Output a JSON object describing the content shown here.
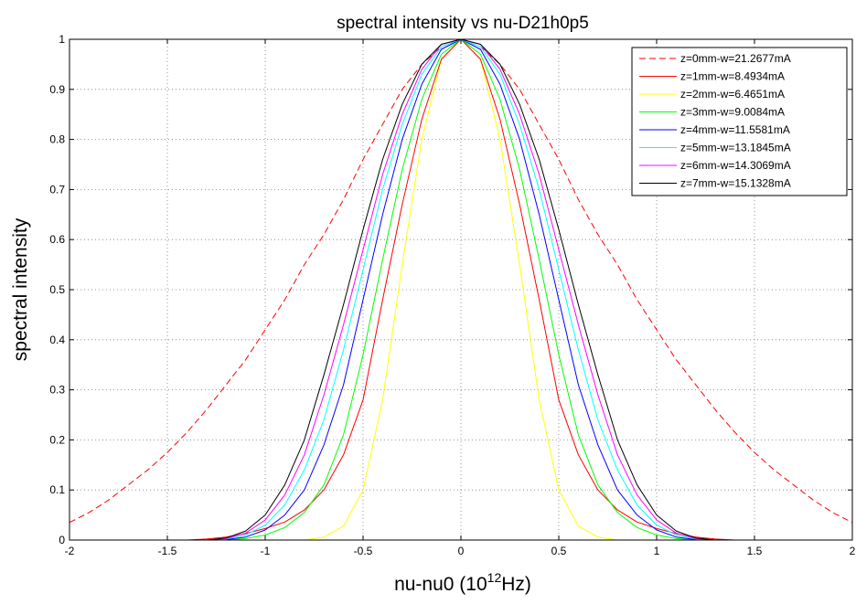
{
  "chart_data": {
    "type": "line",
    "title": "spectral intensity vs nu-D21h0p5",
    "xlabel": "nu-nu0 (10^12Hz)",
    "xlabel_parts": {
      "base": "nu-nu0 (10",
      "sup": "12",
      "tail": "Hz)"
    },
    "ylabel": "spectral intensity",
    "xlim": [
      -2,
      2
    ],
    "ylim": [
      0,
      1
    ],
    "xticks": [
      -2,
      -1.5,
      -1,
      -0.5,
      0,
      0.5,
      1,
      1.5,
      2
    ],
    "xtick_labels": [
      "-2",
      "-1.5",
      "-1",
      "-0.5",
      "0",
      "0.5",
      "1",
      "1.5",
      "2"
    ],
    "yticks": [
      0,
      0.1,
      0.2,
      0.3,
      0.4,
      0.5,
      0.6,
      0.7,
      0.8,
      0.9,
      1
    ],
    "ytick_labels": [
      "0",
      "0.1",
      "0.2",
      "0.3",
      "0.4",
      "0.5",
      "0.6",
      "0.7",
      "0.8",
      "0.9",
      "1"
    ],
    "grid": true,
    "grid_style": "dotted",
    "legend_position": "top-right",
    "x": [
      -2,
      -1.9,
      -1.8,
      -1.7,
      -1.6,
      -1.5,
      -1.4,
      -1.3,
      -1.2,
      -1.1,
      -1,
      -0.9,
      -0.8,
      -0.7,
      -0.6,
      -0.5,
      -0.4,
      -0.3,
      -0.2,
      -0.1,
      0,
      0.1,
      0.2,
      0.3,
      0.4,
      0.5,
      0.6,
      0.7,
      0.8,
      0.9,
      1,
      1.1,
      1.2,
      1.3,
      1.4,
      1.5,
      1.6,
      1.7,
      1.8,
      1.9,
      2
    ],
    "series": [
      {
        "name": "z=0mm-w=21.2677mA",
        "color": "#ff0000",
        "dash": "dashed",
        "values": [
          0.035,
          0.055,
          0.08,
          0.11,
          0.14,
          0.175,
          0.215,
          0.26,
          0.31,
          0.36,
          0.42,
          0.48,
          0.55,
          0.61,
          0.68,
          0.76,
          0.83,
          0.9,
          0.95,
          0.985,
          1,
          0.985,
          0.95,
          0.9,
          0.83,
          0.76,
          0.68,
          0.61,
          0.55,
          0.48,
          0.42,
          0.36,
          0.31,
          0.26,
          0.215,
          0.175,
          0.14,
          0.11,
          0.08,
          0.055,
          0.035
        ]
      },
      {
        "name": "z=1mm-w=8.4934mA",
        "color": "#ff0000",
        "dash": "solid",
        "values": [
          0,
          0,
          0,
          0,
          0,
          0,
          0,
          0.002,
          0.006,
          0.013,
          0.023,
          0.036,
          0.06,
          0.1,
          0.17,
          0.28,
          0.48,
          0.67,
          0.84,
          0.96,
          1,
          0.96,
          0.84,
          0.67,
          0.48,
          0.28,
          0.17,
          0.1,
          0.06,
          0.036,
          0.023,
          0.013,
          0.006,
          0.002,
          0,
          0,
          0,
          0,
          0,
          0,
          0
        ]
      },
      {
        "name": "z=2mm-w=6.4651mA",
        "color": "#ffff00",
        "dash": "solid",
        "values": [
          0,
          0,
          0,
          0,
          0,
          0,
          0,
          0,
          0,
          0,
          0,
          0,
          0,
          0.006,
          0.028,
          0.1,
          0.28,
          0.55,
          0.8,
          0.96,
          1,
          0.96,
          0.8,
          0.55,
          0.28,
          0.1,
          0.028,
          0.006,
          0,
          0,
          0,
          0,
          0,
          0,
          0,
          0,
          0,
          0,
          0,
          0,
          0
        ]
      },
      {
        "name": "z=3mm-w=9.0084mA",
        "color": "#00ff00",
        "dash": "solid",
        "values": [
          0,
          0,
          0,
          0,
          0,
          0,
          0,
          0,
          0,
          0.003,
          0.01,
          0.025,
          0.055,
          0.11,
          0.21,
          0.37,
          0.56,
          0.74,
          0.88,
          0.97,
          1,
          0.97,
          0.88,
          0.74,
          0.56,
          0.37,
          0.21,
          0.11,
          0.055,
          0.025,
          0.01,
          0.003,
          0,
          0,
          0,
          0,
          0,
          0,
          0,
          0,
          0
        ]
      },
      {
        "name": "z=4mm-w=11.5581mA",
        "color": "#0000ff",
        "dash": "solid",
        "values": [
          0,
          0,
          0,
          0,
          0,
          0,
          0,
          0,
          0.001,
          0.006,
          0.02,
          0.05,
          0.1,
          0.19,
          0.31,
          0.48,
          0.65,
          0.8,
          0.91,
          0.98,
          1,
          0.98,
          0.91,
          0.8,
          0.65,
          0.48,
          0.31,
          0.19,
          0.1,
          0.05,
          0.02,
          0.006,
          0.001,
          0,
          0,
          0,
          0,
          0,
          0,
          0,
          0
        ]
      },
      {
        "name": "z=5mm-w=13.1845mA",
        "color": "#00ffff",
        "dash": "solid",
        "values": [
          0,
          0,
          0,
          0,
          0,
          0,
          0,
          0,
          0.002,
          0.01,
          0.03,
          0.07,
          0.14,
          0.24,
          0.38,
          0.54,
          0.7,
          0.83,
          0.93,
          0.985,
          1,
          0.985,
          0.93,
          0.83,
          0.7,
          0.54,
          0.38,
          0.24,
          0.14,
          0.07,
          0.03,
          0.01,
          0.002,
          0,
          0,
          0,
          0,
          0,
          0,
          0,
          0
        ]
      },
      {
        "name": "z=6mm-w=14.3069mA",
        "color": "#ff00ff",
        "dash": "solid",
        "values": [
          0,
          0,
          0,
          0,
          0,
          0,
          0,
          0,
          0.003,
          0.014,
          0.04,
          0.09,
          0.17,
          0.29,
          0.43,
          0.58,
          0.73,
          0.85,
          0.94,
          0.99,
          1,
          0.99,
          0.94,
          0.85,
          0.73,
          0.58,
          0.43,
          0.29,
          0.17,
          0.09,
          0.04,
          0.014,
          0.003,
          0,
          0,
          0,
          0,
          0,
          0,
          0,
          0
        ]
      },
      {
        "name": "z=7mm-w=15.1328mA",
        "color": "#000000",
        "dash": "solid",
        "values": [
          0,
          0,
          0,
          0,
          0,
          0,
          0,
          0,
          0.004,
          0.018,
          0.05,
          0.11,
          0.2,
          0.33,
          0.47,
          0.62,
          0.76,
          0.87,
          0.95,
          0.99,
          1,
          0.99,
          0.95,
          0.87,
          0.76,
          0.62,
          0.47,
          0.33,
          0.2,
          0.11,
          0.05,
          0.018,
          0.004,
          0,
          0,
          0,
          0,
          0,
          0,
          0,
          0
        ]
      }
    ]
  }
}
